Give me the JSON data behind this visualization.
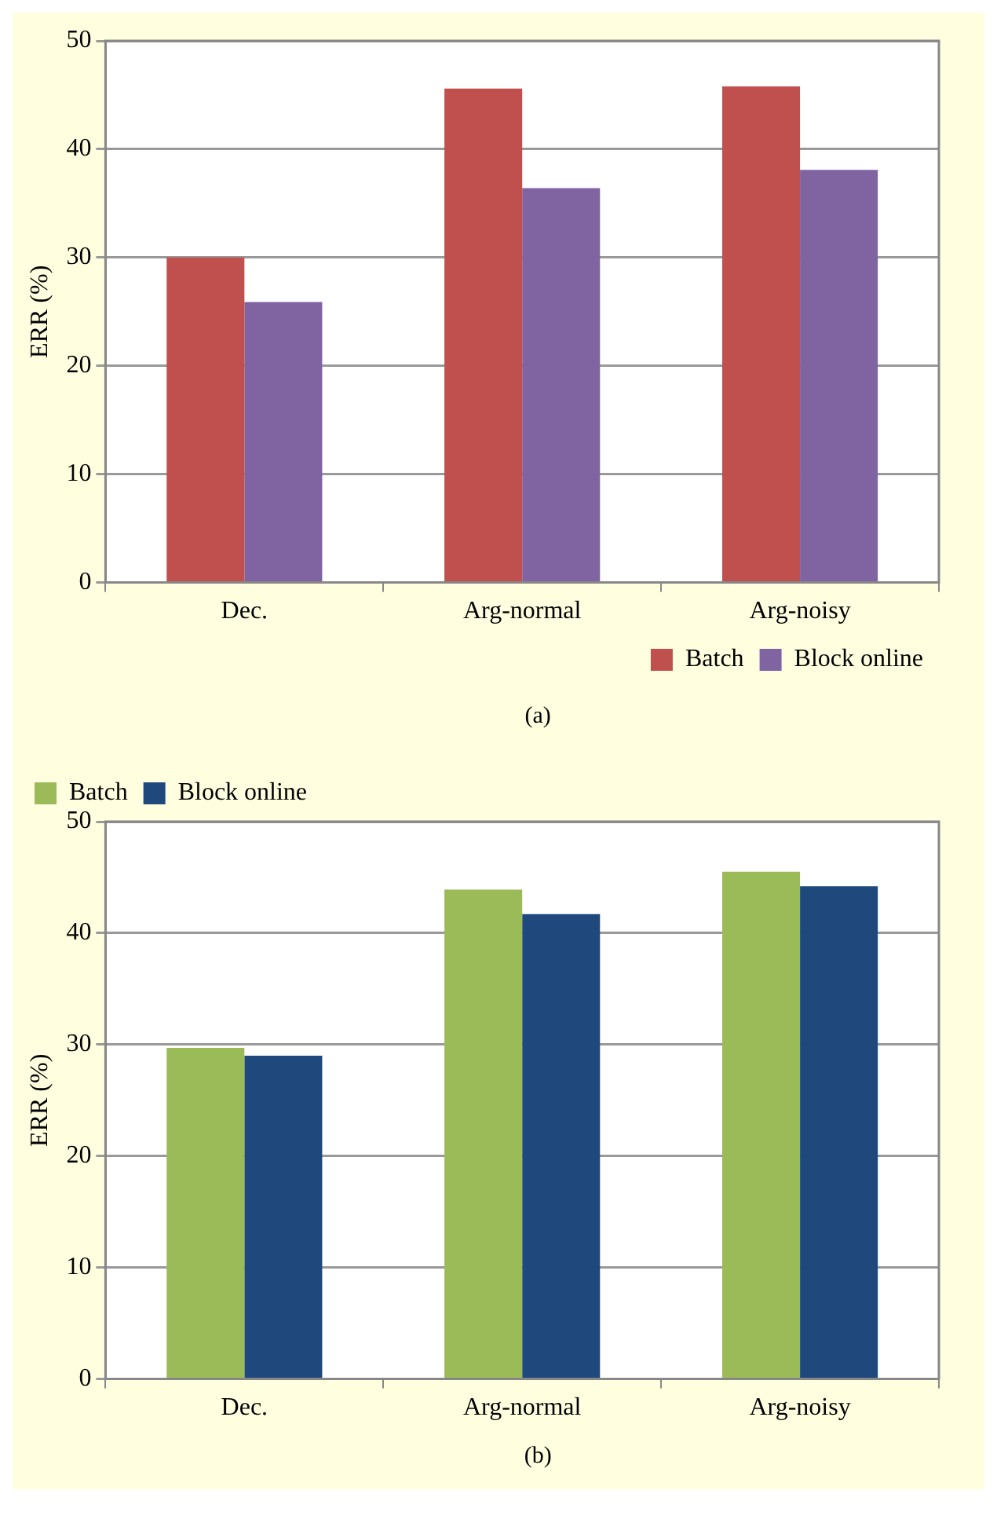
{
  "chart_data": [
    {
      "type": "bar",
      "categories": [
        "Dec.",
        "Arg-normal",
        "Arg-noisy"
      ],
      "ylabel": "ERR (%)",
      "ylim": [
        0,
        50
      ],
      "yticks": [
        0,
        10,
        20,
        30,
        40,
        50
      ],
      "grid": "y",
      "legend": "bottom right",
      "annotations": [
        "(a)"
      ],
      "series": [
        {
          "name": "Batch",
          "color": "#c0504d",
          "values": [
            30.0,
            45.6,
            45.8
          ]
        },
        {
          "name": "Block online",
          "color": "#8064a2",
          "values": [
            25.9,
            36.4,
            38.1
          ]
        }
      ]
    },
    {
      "type": "bar",
      "categories": [
        "Dec.",
        "Arg-normal",
        "Arg-noisy"
      ],
      "ylabel": "ERR (%)",
      "ylim": [
        0,
        50
      ],
      "yticks": [
        0,
        10,
        20,
        30,
        40,
        50
      ],
      "grid": "y",
      "legend": "top left",
      "annotations": [
        "(b)"
      ],
      "series": [
        {
          "name": "Batch",
          "color": "#9bbb59",
          "values": [
            29.7,
            43.9,
            45.5
          ]
        },
        {
          "name": "Block online",
          "color": "#1f497d",
          "values": [
            29.0,
            41.7,
            44.2
          ]
        }
      ]
    }
  ]
}
